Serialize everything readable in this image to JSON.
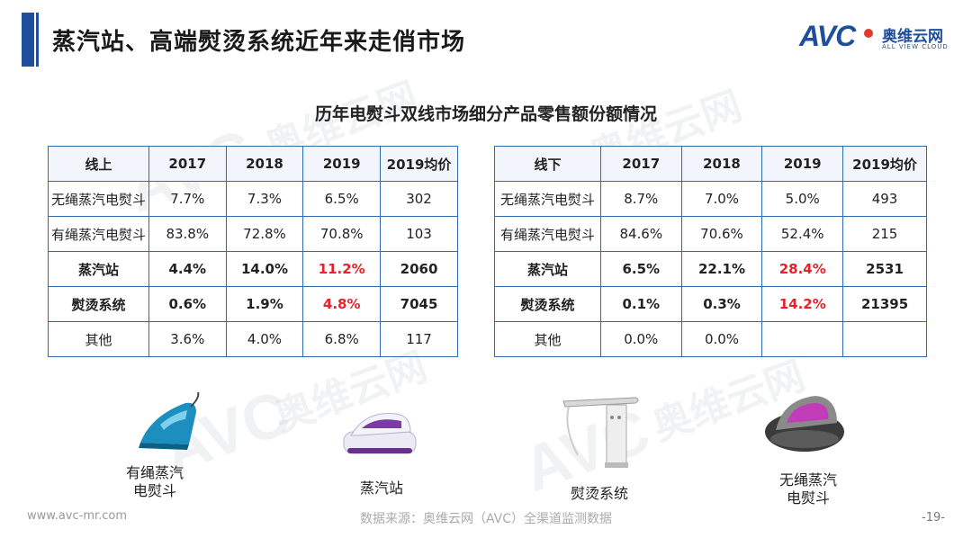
{
  "header": {
    "title": "蒸汽站、高端熨烫系统近年来走俏市场",
    "logo_text": "AVC",
    "logo_cn": "奥维云网",
    "logo_en": "ALL VIEW CLOUD"
  },
  "subtitle": "历年电熨斗双线市场细分产品零售额份额情况",
  "online_table": {
    "headers": [
      "线上",
      "2017",
      "2018",
      "2019",
      "2019均价"
    ],
    "rows": [
      [
        "无绳蒸汽电熨斗",
        "7.7%",
        "7.3%",
        "6.5%",
        "302"
      ],
      [
        "有绳蒸汽电熨斗",
        "83.8%",
        "72.8%",
        "70.8%",
        "103"
      ],
      [
        "蒸汽站",
        "4.4%",
        "14.0%",
        "11.2%",
        "2060"
      ],
      [
        "熨烫系统",
        "0.6%",
        "1.9%",
        "4.8%",
        "7045"
      ],
      [
        "其他",
        "3.6%",
        "4.0%",
        "6.8%",
        "117"
      ]
    ]
  },
  "offline_table": {
    "headers": [
      "线下",
      "2017",
      "2018",
      "2019",
      "2019均价"
    ],
    "rows": [
      [
        "无绳蒸汽电熨斗",
        "8.7%",
        "7.0%",
        "5.0%",
        "493"
      ],
      [
        "有绳蒸汽电熨斗",
        "84.6%",
        "70.6%",
        "52.4%",
        "215"
      ],
      [
        "蒸汽站",
        "6.5%",
        "22.1%",
        "28.4%",
        "2531"
      ],
      [
        "熨烫系统",
        "0.1%",
        "0.3%",
        "14.2%",
        "21395"
      ],
      [
        "其他",
        "0.0%",
        "0.0%",
        "",
        ""
      ]
    ]
  },
  "products": {
    "corded": "有绳蒸汽\n电熨斗",
    "station": "蒸汽站",
    "system": "熨烫系统",
    "cordless": "无绳蒸汽\n电熨斗"
  },
  "footer": {
    "website": "www.avc-mr.com",
    "source": "数据来源：奥维云网（AVC）全渠道监测数据",
    "page": "-19-"
  },
  "colors": {
    "accent": "#1f4e9a",
    "highlight_red": "#e3242b",
    "table_border": "#2e6bb0"
  }
}
